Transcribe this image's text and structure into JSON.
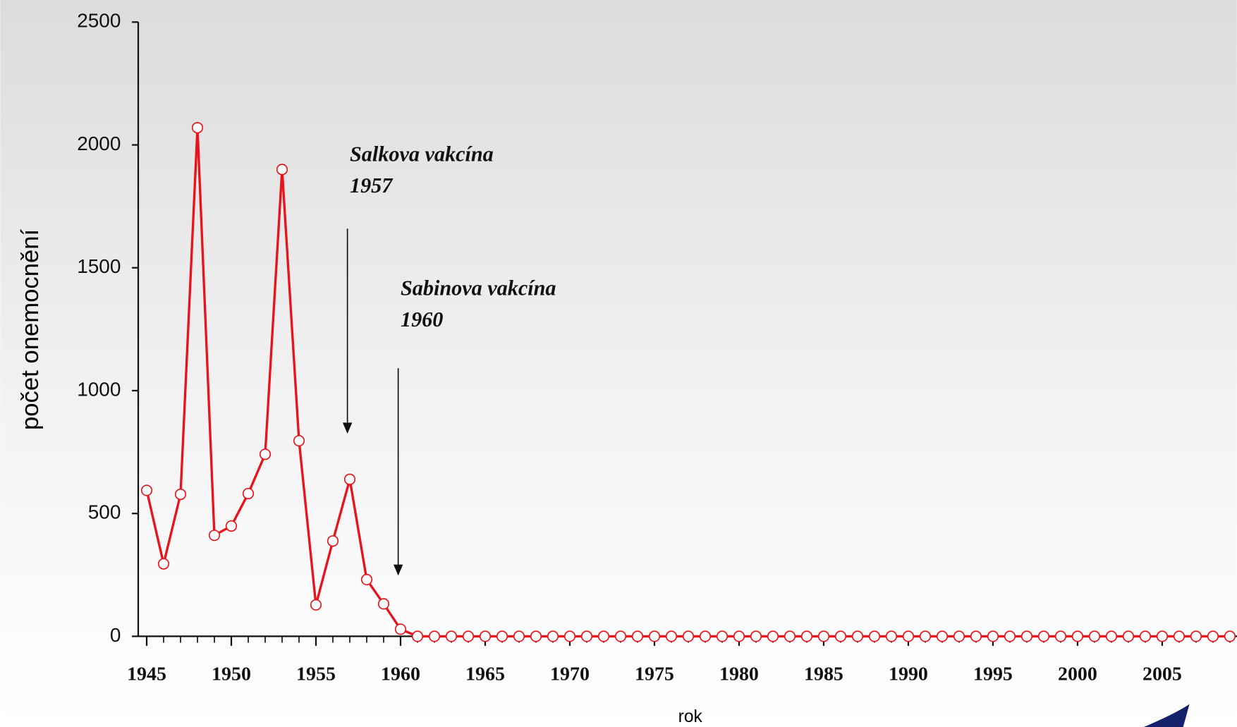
{
  "chart_data": {
    "type": "line",
    "y_label": "počet onemocnění",
    "x_label": "rok",
    "x": [
      1945,
      1946,
      1947,
      1948,
      1949,
      1950,
      1951,
      1952,
      1953,
      1954,
      1955,
      1956,
      1957,
      1958,
      1959,
      1960,
      1961,
      1962,
      1963,
      1964,
      1965,
      1966,
      1967,
      1968,
      1969,
      1970,
      1971,
      1972,
      1973,
      1974,
      1975,
      1976,
      1977,
      1978,
      1979,
      1980,
      1981,
      1982,
      1983,
      1984,
      1985,
      1986,
      1987,
      1988,
      1989,
      1990,
      1991,
      1992,
      1993,
      1994,
      1995,
      1996,
      1997,
      1998,
      1999,
      2000,
      2001,
      2002,
      2003,
      2004,
      2005,
      2006,
      2007,
      2008,
      2009
    ],
    "series": [
      {
        "color": "#e8141c",
        "values": [
          594,
          295,
          578,
          2070,
          411,
          449,
          581,
          741,
          1900,
          796,
          128,
          388,
          639,
          231,
          132,
          29,
          0,
          0,
          0,
          0,
          0,
          0,
          0,
          0,
          0,
          0,
          0,
          0,
          0,
          0,
          0,
          0,
          0,
          0,
          0,
          0,
          0,
          0,
          0,
          0,
          0,
          0,
          0,
          0,
          0,
          0,
          0,
          0,
          0,
          0,
          0,
          0,
          0,
          0,
          0,
          0,
          0,
          0,
          0,
          0,
          0,
          0,
          0,
          0,
          0
        ]
      }
    ],
    "xlim": [
      1944.5,
      2009.5
    ],
    "xticks": [
      1945,
      1950,
      1955,
      1960,
      1965,
      1970,
      1975,
      1980,
      1985,
      1990,
      1995,
      2000,
      2005
    ],
    "ylim": [
      0,
      2500
    ],
    "yticks": [
      0,
      500,
      1000,
      1500,
      2000,
      2500
    ],
    "annotations": [
      {
        "lines": [
          "Salkova vakcína",
          "1957"
        ],
        "year": 1957
      },
      {
        "lines": [
          "Sabinova vakcína",
          "1960"
        ],
        "year": 1960
      }
    ]
  }
}
